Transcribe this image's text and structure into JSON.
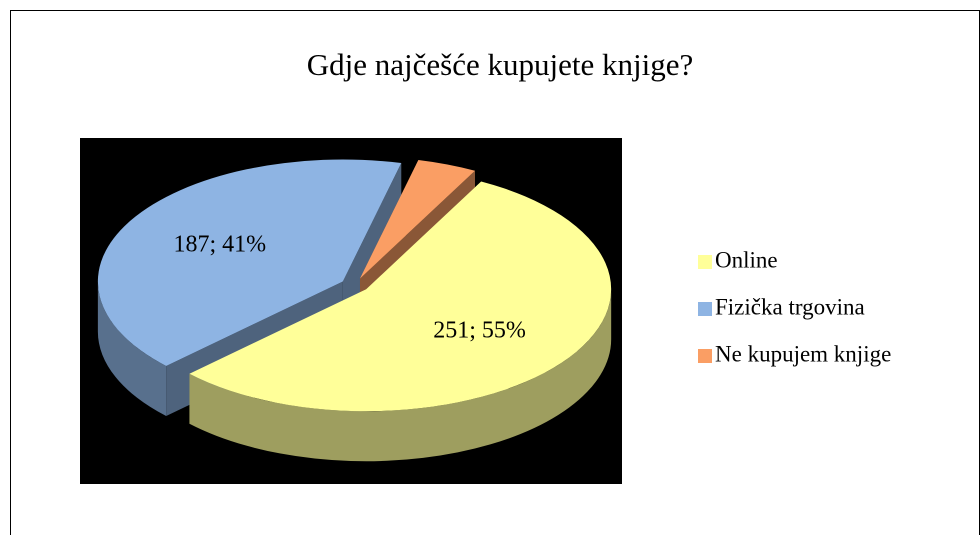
{
  "chart_data": {
    "type": "pie",
    "title": "Gdje najčešće kupujete knjige?",
    "categories": [
      "Online",
      "Fizička trgovina",
      "Ne kupujem knjige"
    ],
    "values": [
      251,
      187,
      18
    ],
    "value_labels": [
      "251; 55%",
      "187; 41%",
      null
    ],
    "colors": [
      "#ffff99",
      "#8eb4e3",
      "#fa9e64"
    ],
    "legend": "right"
  }
}
